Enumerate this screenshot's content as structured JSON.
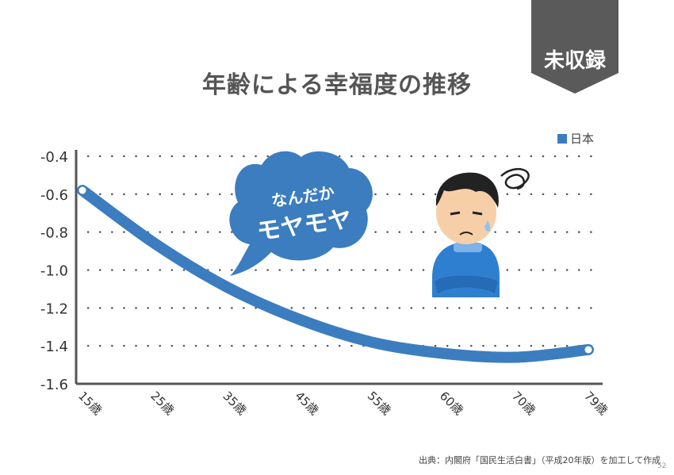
{
  "badge": {
    "label": "未収録"
  },
  "chart_data": {
    "type": "line",
    "title": "年齢による幸福度の推移",
    "categories": [
      "15歳",
      "25歳",
      "35歳",
      "45歳",
      "55歳",
      "60歳",
      "70歳",
      "79歳"
    ],
    "series": [
      {
        "name": "日本",
        "color": "#3b7dbf",
        "values": [
          -0.58,
          -0.86,
          -1.09,
          -1.26,
          -1.38,
          -1.44,
          -1.46,
          -1.42
        ]
      }
    ],
    "y_ticks": [
      "-0.4",
      "-0.6",
      "-0.8",
      "-1.0",
      "-1.2",
      "-1.4",
      "-1.6"
    ],
    "ylim": [
      -1.6,
      -0.4
    ],
    "grid": "horizontal dotted",
    "legend_position": "top-right"
  },
  "annotation": {
    "line1": "なんだか",
    "line2": "モヤモヤ",
    "color": "#3b7dbf"
  },
  "source": "出典：内閣府「国民生活白書」（平成20年版）を加工して作成",
  "page_number": "52"
}
